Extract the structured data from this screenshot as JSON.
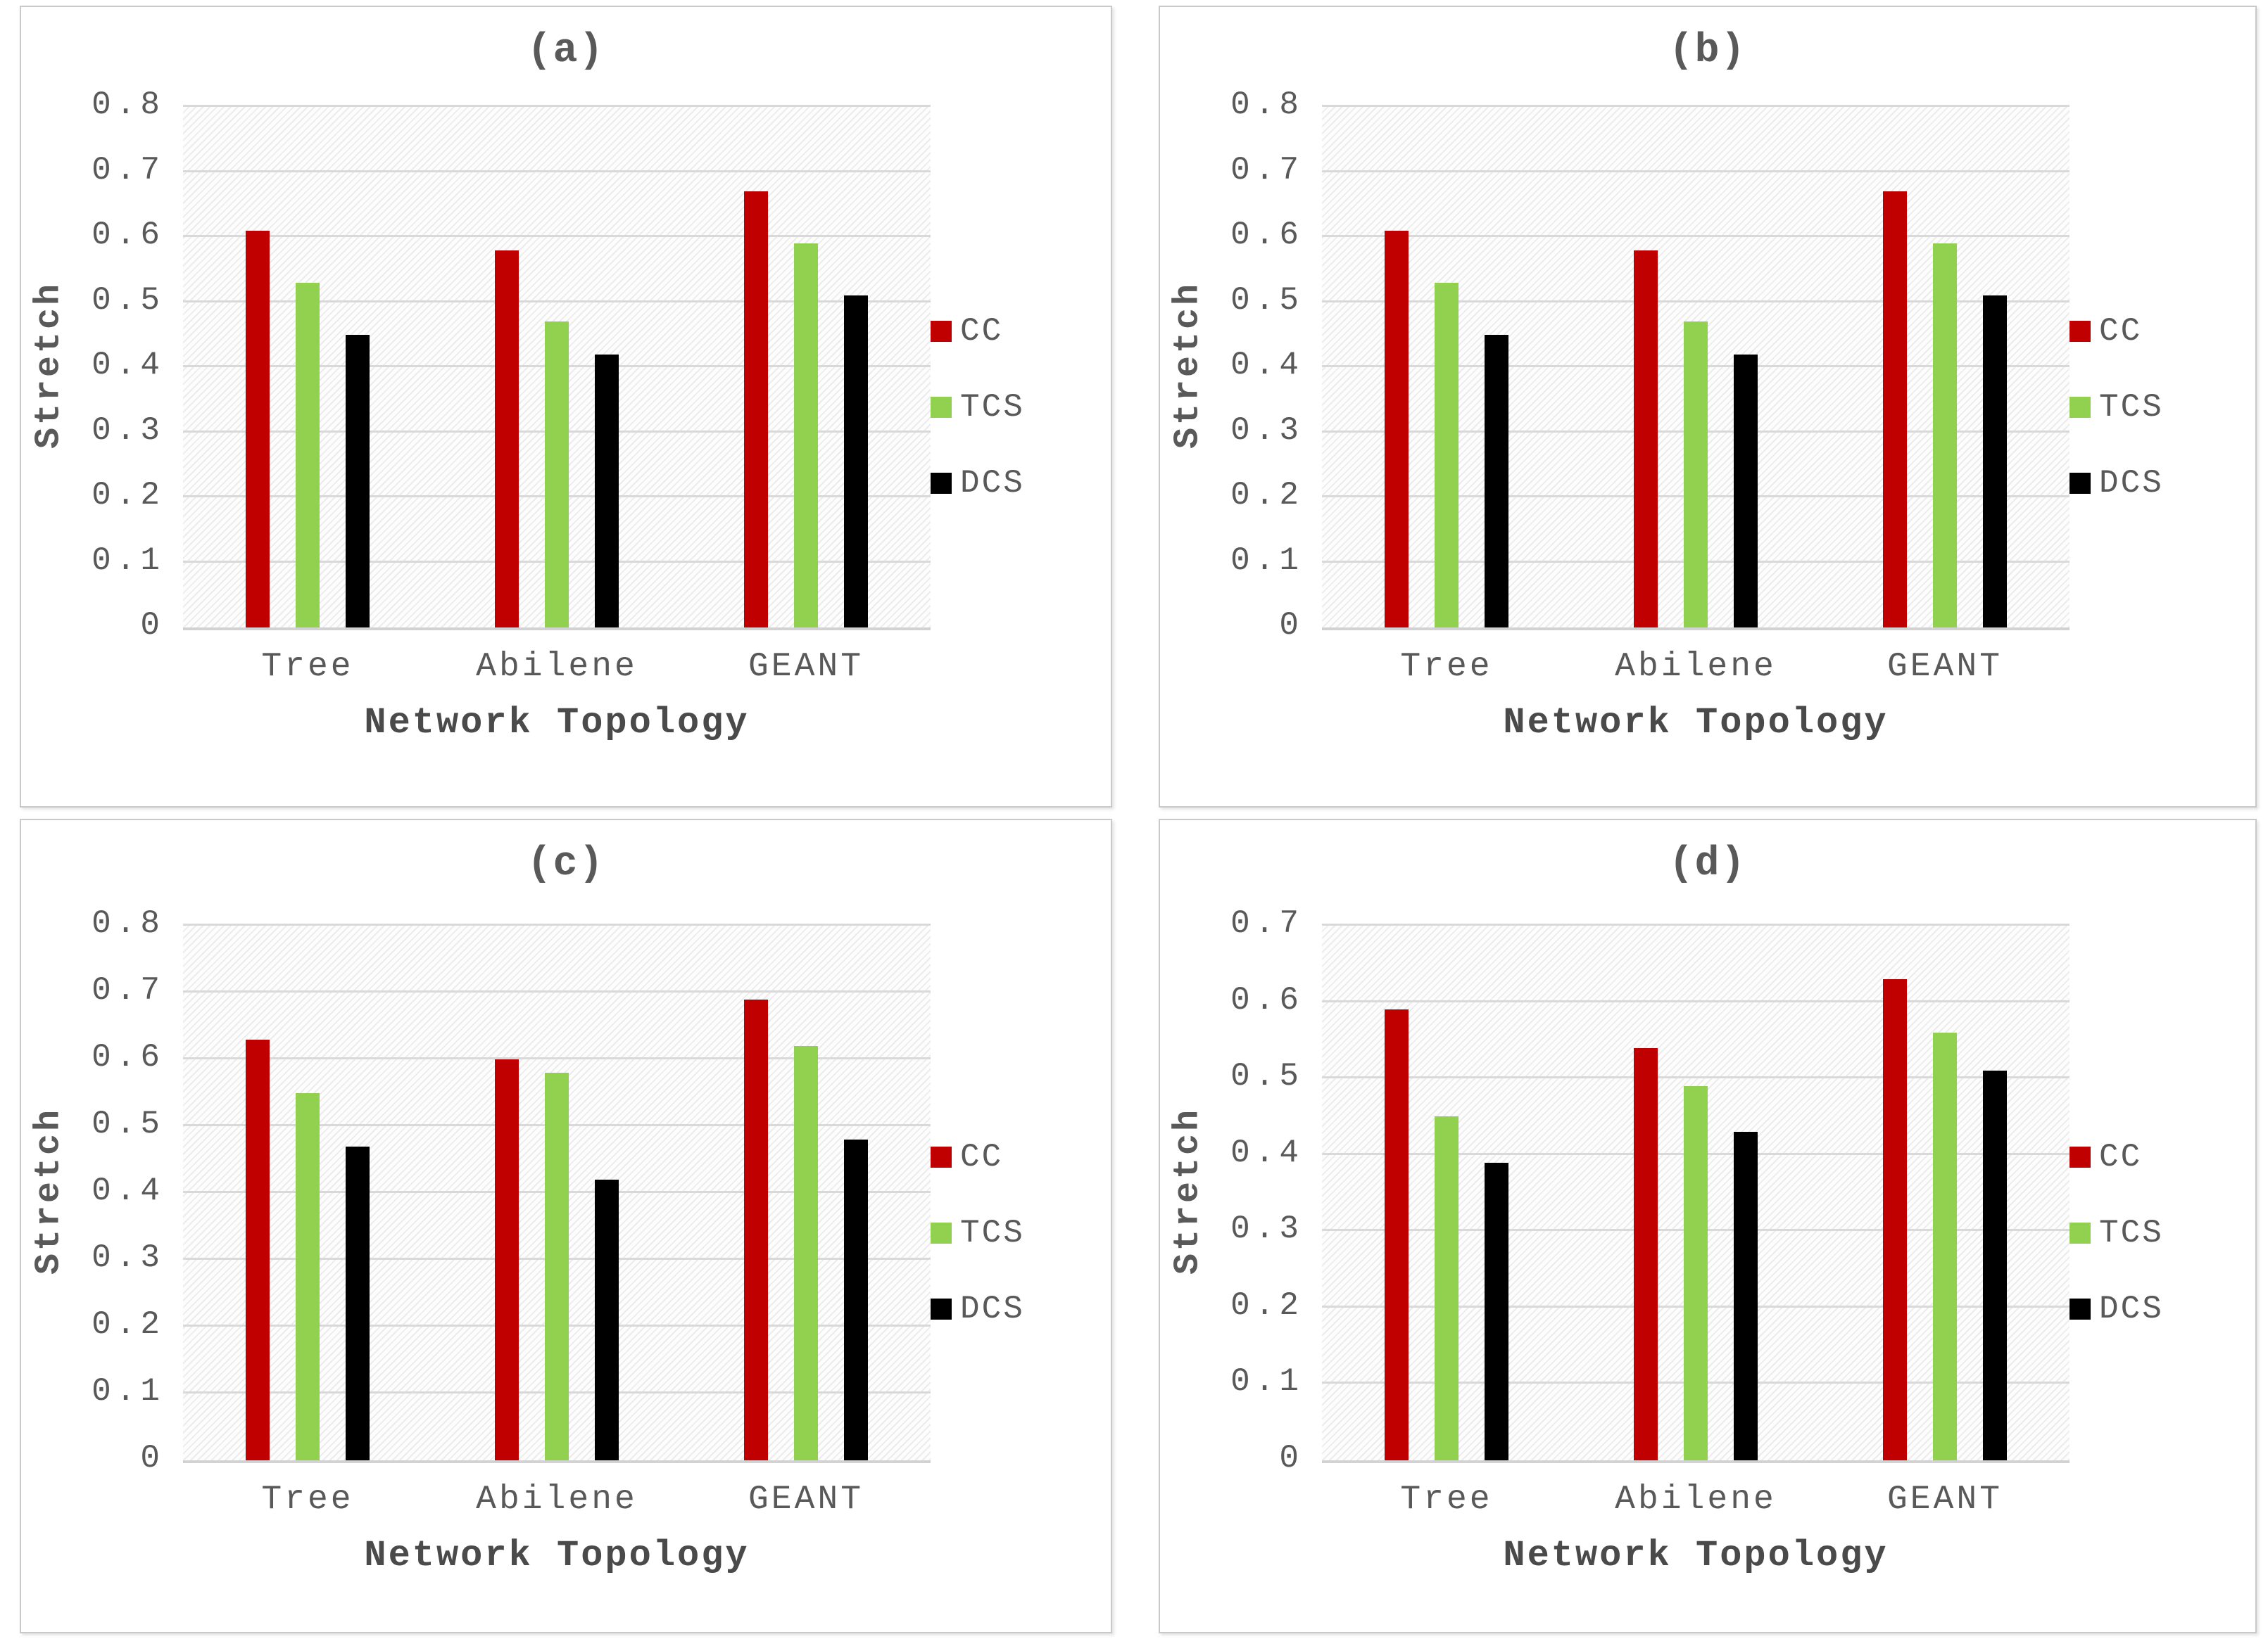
{
  "figure": {
    "xlabel": "Network Topology",
    "ylabel": "Stretch",
    "legend_labels": [
      "CC",
      "TCS",
      "DCS"
    ]
  },
  "colors": {
    "cc_red": "#C00000",
    "tcs_green": "#92D050",
    "dcs_black": "#000000",
    "gridline": "#D9D9D9",
    "text_gray": "#595959"
  },
  "chart_data": [
    {
      "id": "a",
      "type": "bar",
      "title": "(a)",
      "xlabel": "Network Topology",
      "ylabel": "Stretch",
      "ylim": [
        0,
        0.8
      ],
      "ytick_step": 0.1,
      "grid": "horizontal",
      "legend_position": "right",
      "categories": [
        "Tree",
        "Abilene",
        "GEANT"
      ],
      "series": [
        {
          "name": "CC",
          "color": "#C00000",
          "values": [
            0.61,
            0.58,
            0.67
          ]
        },
        {
          "name": "TCS",
          "color": "#92D050",
          "values": [
            0.53,
            0.47,
            0.59
          ]
        },
        {
          "name": "DCS",
          "color": "#000000",
          "values": [
            0.45,
            0.42,
            0.51
          ]
        }
      ]
    },
    {
      "id": "b",
      "type": "bar",
      "title": "(b)",
      "xlabel": "Network Topology",
      "ylabel": "Stretch",
      "ylim": [
        0,
        0.8
      ],
      "ytick_step": 0.1,
      "grid": "horizontal",
      "legend_position": "right",
      "categories": [
        "Tree",
        "Abilene",
        "GEANT"
      ],
      "series": [
        {
          "name": "CC",
          "color": "#C00000",
          "values": [
            0.61,
            0.58,
            0.67
          ]
        },
        {
          "name": "TCS",
          "color": "#92D050",
          "values": [
            0.53,
            0.47,
            0.59
          ]
        },
        {
          "name": "DCS",
          "color": "#000000",
          "values": [
            0.45,
            0.42,
            0.51
          ]
        }
      ]
    },
    {
      "id": "c",
      "type": "bar",
      "title": "(c)",
      "xlabel": "Network Topology",
      "ylabel": "Stretch",
      "ylim": [
        0,
        0.8
      ],
      "ytick_step": 0.1,
      "grid": "horizontal",
      "legend_position": "right",
      "categories": [
        "Tree",
        "Abilene",
        "GEANT"
      ],
      "series": [
        {
          "name": "CC",
          "color": "#C00000",
          "values": [
            0.63,
            0.6,
            0.69
          ]
        },
        {
          "name": "TCS",
          "color": "#92D050",
          "values": [
            0.55,
            0.58,
            0.62
          ]
        },
        {
          "name": "DCS",
          "color": "#000000",
          "values": [
            0.47,
            0.42,
            0.48
          ]
        }
      ]
    },
    {
      "id": "d",
      "type": "bar",
      "title": "(d)",
      "xlabel": "Network Topology",
      "ylabel": "Stretch",
      "ylim": [
        0,
        0.7
      ],
      "ytick_step": 0.1,
      "grid": "horizontal",
      "legend_position": "right",
      "categories": [
        "Tree",
        "Abilene",
        "GEANT"
      ],
      "series": [
        {
          "name": "CC",
          "color": "#C00000",
          "values": [
            0.59,
            0.54,
            0.63
          ]
        },
        {
          "name": "TCS",
          "color": "#92D050",
          "values": [
            0.45,
            0.49,
            0.56
          ]
        },
        {
          "name": "DCS",
          "color": "#000000",
          "values": [
            0.39,
            0.43,
            0.51
          ]
        }
      ]
    }
  ]
}
